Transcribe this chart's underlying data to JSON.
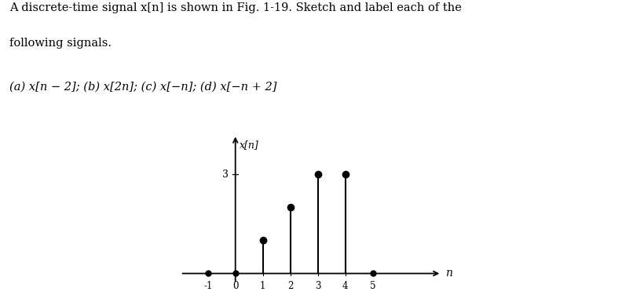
{
  "signal_n": [
    -1,
    0,
    1,
    2,
    3,
    4,
    5
  ],
  "signal_vals": [
    0,
    0,
    1,
    2,
    3,
    3,
    0
  ],
  "dot_zeros_n": [
    -1,
    0,
    5
  ],
  "xlim": [
    -2.0,
    7.5
  ],
  "ylim": [
    -0.5,
    4.2
  ],
  "ytick_val": 3,
  "xlabel": "n",
  "ylabel": "x[n]",
  "fig_label": "Fig. 1-19",
  "text_line1": "A discrete-time signal x[n] is shown in Fig. 1-19. Sketch and label each of the",
  "text_line2": "following signals.",
  "text_line3": "(a) x[n − 2]; (b) x[2n]; (c) x[−n]; (d) x[−n + 2]",
  "stem_color": "#000000",
  "dot_color": "#000000",
  "axis_color": "#000000",
  "background_color": "#ffffff",
  "x_tick_labels": [
    "-1",
    "0",
    "1",
    "2",
    "3",
    "4",
    "5"
  ],
  "x_tick_positions": [
    -1,
    0,
    1,
    2,
    3,
    4,
    5
  ],
  "stem_linewidth": 1.5,
  "markersize": 6,
  "zero_markersize": 5,
  "axis_lw": 1.3
}
